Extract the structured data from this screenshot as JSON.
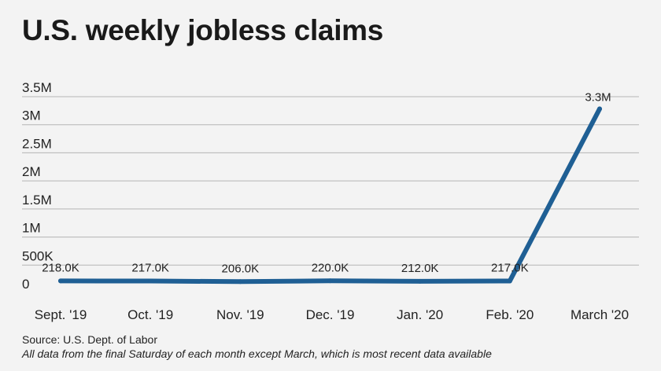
{
  "title": "U.S. weekly jobless claims",
  "source": "Source: U.S. Dept. of Labor",
  "note": "All data from the final Saturday of each month except March, which is most recent data available",
  "colors": {
    "line": "#1f5f94",
    "grid": "#b5b5b5",
    "background": "#f3f3f3",
    "text": "#222222"
  },
  "chart_data": {
    "type": "line",
    "categories": [
      "Sept. '19",
      "Oct. '19",
      "Nov. '19",
      "Dec. '19",
      "Jan. '20",
      "Feb. '20",
      "March '20"
    ],
    "values": [
      218000,
      217000,
      206000,
      220000,
      212000,
      217000,
      3283000
    ],
    "data_labels": [
      "218.0K",
      "217.0K",
      "206.0K",
      "220.0K",
      "212.0K",
      "217.0K",
      "3.3M"
    ],
    "ylim": [
      0,
      3500000
    ],
    "yticks": [
      0,
      500000,
      1000000,
      1500000,
      2000000,
      2500000,
      3000000,
      3500000
    ],
    "ytick_labels": [
      "0",
      "500K",
      "1M",
      "1.5M",
      "2M",
      "2.5M",
      "3M",
      "3.5M"
    ],
    "xlabel": "",
    "ylabel": "",
    "grid": true,
    "legend": false
  }
}
